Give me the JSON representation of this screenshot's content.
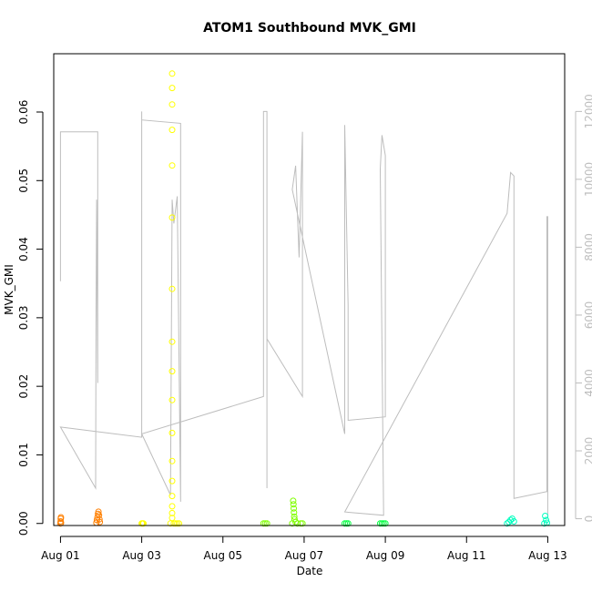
{
  "chart_data": {
    "type": "scatter",
    "title": "ATOM1 Southbound MVK_GMI",
    "xlabel": "Date",
    "ylabel": "MVK_GMI",
    "x_ticks": [
      "Aug 01",
      "Aug 03",
      "Aug 05",
      "Aug 07",
      "Aug 09",
      "Aug 11",
      "Aug 13"
    ],
    "xlim": [
      "2016-07-31T20:00",
      "2016-08-13T10:00"
    ],
    "ylim": [
      -0.0003,
      0.0685
    ],
    "y_ticks": [
      "0.00",
      "0.01",
      "0.02",
      "0.03",
      "0.04",
      "0.05",
      "0.06"
    ],
    "y2lim": [
      -200,
      13700
    ],
    "y2_ticks": [
      "0",
      "2000",
      "4000",
      "6000",
      "8000",
      "10000",
      "12000"
    ],
    "grid": false,
    "series": [
      {
        "color": "#ff7f00",
        "points": [
          [
            "2016-08-01T00:00",
            0.0
          ],
          [
            "2016-08-01T00:05",
            0.0003
          ],
          [
            "2016-08-01T00:10",
            0.0007
          ],
          [
            "2016-08-01T00:15",
            0.0009
          ],
          [
            "2016-08-01T00:20",
            0.0001
          ],
          [
            "2016-08-01T21:10",
            0.0001
          ],
          [
            "2016-08-01T21:30",
            0.0005
          ],
          [
            "2016-08-01T21:50",
            0.0009
          ],
          [
            "2016-08-01T22:10",
            0.0014
          ],
          [
            "2016-08-01T22:25",
            0.0017
          ],
          [
            "2016-08-01T22:45",
            0.0012
          ],
          [
            "2016-08-01T23:00",
            0.0006
          ],
          [
            "2016-08-01T23:15",
            0.0002
          ]
        ]
      },
      {
        "color": "#ffff00",
        "points": [
          [
            "2016-08-03T00:00",
            0.0
          ],
          [
            "2016-08-03T00:30",
            0.0
          ],
          [
            "2016-08-03T01:00",
            0.0
          ],
          [
            "2016-08-03T17:00",
            0.0
          ],
          [
            "2016-08-03T18:00",
            0.0656
          ],
          [
            "2016-08-03T18:00",
            0.0635
          ],
          [
            "2016-08-03T18:00",
            0.0611
          ],
          [
            "2016-08-03T18:00",
            0.0574
          ],
          [
            "2016-08-03T18:00",
            0.0522
          ],
          [
            "2016-08-03T18:00",
            0.0446
          ],
          [
            "2016-08-03T18:00",
            0.0342
          ],
          [
            "2016-08-03T18:00",
            0.0265
          ],
          [
            "2016-08-03T18:00",
            0.0222
          ],
          [
            "2016-08-03T18:00",
            0.018
          ],
          [
            "2016-08-03T18:00",
            0.0132
          ],
          [
            "2016-08-03T18:00",
            0.0091
          ],
          [
            "2016-08-03T18:00",
            0.0062
          ],
          [
            "2016-08-03T18:00",
            0.004
          ],
          [
            "2016-08-03T18:00",
            0.0025
          ],
          [
            "2016-08-03T18:00",
            0.0015
          ],
          [
            "2016-08-03T18:00",
            0.0008
          ],
          [
            "2016-08-03T19:00",
            0.0
          ],
          [
            "2016-08-03T20:00",
            0.0
          ],
          [
            "2016-08-03T21:00",
            0.0
          ],
          [
            "2016-08-03T22:00",
            0.0
          ]
        ]
      },
      {
        "color": "#7fff00",
        "points": [
          [
            "2016-08-06T00:00",
            0.0
          ],
          [
            "2016-08-06T01:00",
            0.0
          ],
          [
            "2016-08-06T02:00",
            0.0
          ],
          [
            "2016-08-06T17:00",
            0.0
          ],
          [
            "2016-08-06T17:30",
            0.0033
          ],
          [
            "2016-08-06T17:40",
            0.0028
          ],
          [
            "2016-08-06T17:50",
            0.0022
          ],
          [
            "2016-08-06T18:00",
            0.0016
          ],
          [
            "2016-08-06T18:10",
            0.001
          ],
          [
            "2016-08-06T18:20",
            0.0006
          ],
          [
            "2016-08-06T19:00",
            0.0002
          ],
          [
            "2016-08-06T20:00",
            0.0
          ],
          [
            "2016-08-06T22:00",
            0.0
          ],
          [
            "2016-08-06T23:00",
            0.0
          ]
        ]
      },
      {
        "color": "#00ff3f",
        "points": [
          [
            "2016-08-08T00:00",
            0.0
          ],
          [
            "2016-08-08T01:00",
            0.0
          ],
          [
            "2016-08-08T02:00",
            0.0
          ],
          [
            "2016-08-08T21:00",
            0.0
          ],
          [
            "2016-08-08T22:00",
            0.0
          ],
          [
            "2016-08-08T23:00",
            0.0
          ],
          [
            "2016-08-09T00:00",
            0.0
          ]
        ]
      },
      {
        "color": "#00ffbf",
        "points": [
          [
            "2016-08-12T00:00",
            0.0
          ],
          [
            "2016-08-12T01:00",
            0.0002
          ],
          [
            "2016-08-12T02:00",
            0.0005
          ],
          [
            "2016-08-12T03:00",
            0.0007
          ],
          [
            "2016-08-12T04:00",
            0.0003
          ],
          [
            "2016-08-12T22:00",
            0.0
          ],
          [
            "2016-08-12T22:30",
            0.0011
          ],
          [
            "2016-08-12T23:00",
            0.0005
          ],
          [
            "2016-08-12T23:30",
            0.0001
          ]
        ]
      }
    ],
    "secondary_line": {
      "color": "#bdbdbd",
      "axis": "right",
      "points": [
        [
          "2016-08-01T00:00",
          7000
        ],
        [
          "2016-08-01T00:00",
          11400
        ],
        [
          "2016-08-01T22:00",
          11400
        ],
        [
          "2016-08-01T22:00",
          4000
        ],
        [
          "2016-08-01T21:20",
          9400
        ],
        [
          "2016-08-01T21:00",
          5600
        ],
        [
          "2016-08-01T20:45",
          900
        ],
        [
          "2016-08-01T00:00",
          2700
        ],
        [
          "2016-08-03T00:00",
          2400
        ],
        [
          "2016-08-03T00:00",
          12000
        ],
        [
          "2016-08-03T00:00",
          11750
        ],
        [
          "2016-08-03T23:00",
          11650
        ],
        [
          "2016-08-03T23:00",
          500
        ],
        [
          "2016-08-03T21:00",
          9500
        ],
        [
          "2016-08-03T19:00",
          8700
        ],
        [
          "2016-08-03T18:00",
          9400
        ],
        [
          "2016-08-03T17:00",
          700
        ],
        [
          "2016-08-03T00:00",
          2500
        ],
        [
          "2016-08-06T00:00",
          3600
        ],
        [
          "2016-08-06T00:00",
          12000
        ],
        [
          "2016-08-06T02:00",
          12000
        ],
        [
          "2016-08-06T02:00",
          900
        ],
        [
          "2016-08-06T02:00",
          5300
        ],
        [
          "2016-08-06T23:00",
          3600
        ],
        [
          "2016-08-06T23:00",
          11400
        ],
        [
          "2016-08-06T21:00",
          7700
        ],
        [
          "2016-08-06T19:00",
          10400
        ],
        [
          "2016-08-06T17:00",
          9700
        ],
        [
          "2016-08-08T00:00",
          2500
        ],
        [
          "2016-08-08T00:00",
          11600
        ],
        [
          "2016-08-08T02:00",
          6300
        ],
        [
          "2016-08-08T02:00",
          2900
        ],
        [
          "2016-08-09T00:00",
          3000
        ],
        [
          "2016-08-09T00:00",
          10700
        ],
        [
          "2016-08-08T22:00",
          11300
        ],
        [
          "2016-08-08T21:00",
          10300
        ],
        [
          "2016-08-08T23:00",
          100
        ],
        [
          "2016-08-08T00:00",
          200
        ],
        [
          "2016-08-12T00:00",
          9000
        ],
        [
          "2016-08-12T02:00",
          10200
        ],
        [
          "2016-08-12T04:00",
          10100
        ],
        [
          "2016-08-12T04:00",
          600
        ],
        [
          "2016-08-12T23:30",
          800
        ],
        [
          "2016-08-12T23:30",
          8900
        ],
        [
          "2016-08-13T00:00",
          8900
        ],
        [
          "2016-08-13T00:00",
          0
        ]
      ]
    }
  }
}
